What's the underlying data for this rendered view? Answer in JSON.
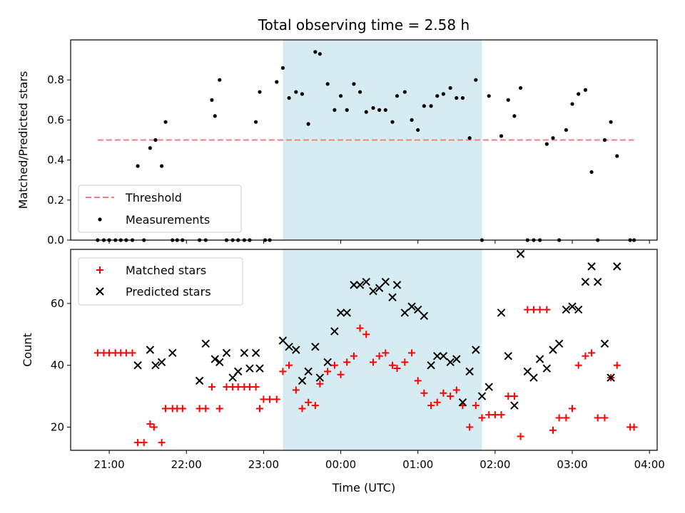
{
  "figure": {
    "title": "Total observing time = 2.58 h"
  },
  "chart_data": [
    {
      "type": "scatter",
      "ylabel": "Matched/Predicted stars",
      "ylim": [
        0,
        1
      ],
      "yticks": [
        "0.0",
        "0.2",
        "0.4",
        "0.6",
        "0.8"
      ],
      "xlim_hours": [
        20.5,
        28.1
      ],
      "shaded_span_hours": [
        23.25,
        25.83
      ],
      "threshold": {
        "name": "Threshold",
        "value": 0.5,
        "x_range_hours": [
          20.85,
          27.8
        ],
        "color": "#f08080"
      },
      "series": [
        {
          "name": "Measurements",
          "color": "#000000",
          "x_hours": [
            20.85,
            20.93,
            21.0,
            21.08,
            21.15,
            21.22,
            21.3,
            21.37,
            21.45,
            21.53,
            21.6,
            21.68,
            21.73,
            21.82,
            21.88,
            21.95,
            22.17,
            22.25,
            22.33,
            22.37,
            22.43,
            22.52,
            22.6,
            22.67,
            22.75,
            22.82,
            22.9,
            22.95,
            23.02,
            23.08,
            23.17,
            23.25,
            23.33,
            23.42,
            23.5,
            23.58,
            23.67,
            23.73,
            23.83,
            23.92,
            24.0,
            24.08,
            24.17,
            24.25,
            24.33,
            24.42,
            24.5,
            24.58,
            24.67,
            24.73,
            24.83,
            24.92,
            25.0,
            25.08,
            25.17,
            25.25,
            25.33,
            25.42,
            25.5,
            25.58,
            25.67,
            25.75,
            25.83,
            25.92,
            26.08,
            26.17,
            26.25,
            26.33,
            26.42,
            26.5,
            26.58,
            26.67,
            26.75,
            26.83,
            26.92,
            27.0,
            27.08,
            27.17,
            27.25,
            27.33,
            27.42,
            27.5,
            27.58,
            27.75,
            27.8
          ],
          "y": [
            0,
            0,
            0,
            0,
            0,
            0,
            0,
            0.37,
            0,
            0.46,
            0.5,
            0.37,
            0.59,
            0,
            0,
            0,
            0,
            0,
            0.7,
            0.62,
            0.8,
            0,
            0,
            0,
            0,
            0,
            0.59,
            0.74,
            0,
            0,
            0.79,
            0.86,
            0.71,
            0.74,
            0.73,
            0.58,
            0.94,
            0.93,
            0.78,
            0.65,
            0.72,
            0.65,
            0.78,
            0.74,
            0.64,
            0.66,
            0.65,
            0.65,
            0.59,
            0.72,
            0.74,
            0.6,
            0.55,
            0.67,
            0.67,
            0.72,
            0.73,
            0.76,
            0.71,
            0.71,
            0.51,
            0.8,
            0,
            0.72,
            0.52,
            0.7,
            0.62,
            0.76,
            0,
            0,
            0,
            0.48,
            0.51,
            0,
            0.55,
            0.68,
            0.73,
            0.75,
            0.34,
            0,
            0.5,
            0.59,
            0.42,
            0,
            0
          ]
        }
      ]
    },
    {
      "type": "scatter",
      "xlabel": "Time (UTC)",
      "ylabel": "Count",
      "ylim": [
        12.5,
        77.5
      ],
      "yticks": [
        "20",
        "40",
        "60"
      ],
      "xticks": [
        "21:00",
        "22:00",
        "23:00",
        "00:00",
        "01:00",
        "02:00",
        "03:00",
        "04:00"
      ],
      "xlim_hours": [
        20.5,
        28.1
      ],
      "shaded_span_hours": [
        23.25,
        25.83
      ],
      "series": [
        {
          "name": "Matched stars",
          "marker": "+",
          "color": "#ff0000",
          "x_hours": [
            20.85,
            20.93,
            21.0,
            21.08,
            21.15,
            21.22,
            21.3,
            21.37,
            21.45,
            21.53,
            21.58,
            21.68,
            21.73,
            21.82,
            21.88,
            21.95,
            22.17,
            22.25,
            22.33,
            22.43,
            22.52,
            22.6,
            22.67,
            22.75,
            22.82,
            22.9,
            22.95,
            23.0,
            23.08,
            23.17,
            23.25,
            23.33,
            23.42,
            23.5,
            23.58,
            23.67,
            23.73,
            23.83,
            23.92,
            24.0,
            24.08,
            24.17,
            24.25,
            24.33,
            24.42,
            24.5,
            24.58,
            24.67,
            24.73,
            24.83,
            24.92,
            25.0,
            25.08,
            25.17,
            25.25,
            25.33,
            25.42,
            25.5,
            25.58,
            25.67,
            25.75,
            25.83,
            25.92,
            26.0,
            26.08,
            26.17,
            26.25,
            26.33,
            26.42,
            26.5,
            26.58,
            26.67,
            26.75,
            26.83,
            26.92,
            27.0,
            27.08,
            27.17,
            27.25,
            27.33,
            27.42,
            27.5,
            27.58,
            27.75,
            27.8
          ],
          "y": [
            44,
            44,
            44,
            44,
            44,
            44,
            44,
            15,
            15,
            21,
            20,
            15,
            26,
            26,
            26,
            26,
            26,
            26,
            33,
            26,
            33,
            33,
            33,
            33,
            33,
            33,
            26,
            29,
            29,
            29,
            38,
            40,
            32,
            26,
            28,
            27,
            34,
            38,
            40,
            37,
            41,
            43,
            52,
            50,
            41,
            43,
            44,
            40,
            39,
            41,
            44,
            35,
            31,
            27,
            28,
            31,
            30,
            32,
            27,
            20,
            27,
            23,
            24,
            24,
            24,
            30,
            30,
            17,
            58,
            58,
            58,
            58,
            19,
            23,
            23,
            26,
            40,
            43,
            44,
            23,
            23,
            36,
            40,
            20,
            20
          ]
        },
        {
          "name": "Predicted stars",
          "marker": "x",
          "color": "#000000",
          "x_hours": [
            21.37,
            21.53,
            21.6,
            21.68,
            21.82,
            22.17,
            22.25,
            22.37,
            22.43,
            22.52,
            22.6,
            22.67,
            22.75,
            22.82,
            22.9,
            22.95,
            23.25,
            23.33,
            23.42,
            23.5,
            23.58,
            23.67,
            23.73,
            23.83,
            23.92,
            24.0,
            24.08,
            24.17,
            24.25,
            24.33,
            24.42,
            24.5,
            24.58,
            24.67,
            24.73,
            24.83,
            24.92,
            25.0,
            25.08,
            25.17,
            25.25,
            25.33,
            25.42,
            25.5,
            25.58,
            25.67,
            25.75,
            25.83,
            25.92,
            26.08,
            26.17,
            26.25,
            26.33,
            26.42,
            26.5,
            26.58,
            26.67,
            26.75,
            26.83,
            26.92,
            27.0,
            27.08,
            27.17,
            27.25,
            27.33,
            27.42,
            27.5,
            27.58
          ],
          "y": [
            40,
            45,
            40,
            41,
            44,
            35,
            47,
            42,
            41,
            44,
            36,
            38,
            44,
            39,
            44,
            39,
            48,
            46,
            45,
            35,
            38,
            46,
            36,
            41,
            51,
            57,
            57,
            66,
            66,
            67,
            64,
            65,
            67,
            62,
            66,
            57,
            59,
            58,
            56,
            40,
            43,
            43,
            41,
            42,
            28,
            38,
            45,
            30,
            33,
            57,
            43,
            27,
            76,
            38,
            36,
            42,
            39,
            45,
            47,
            58,
            59,
            58,
            67,
            72,
            67,
            47,
            36,
            72
          ]
        }
      ]
    }
  ]
}
